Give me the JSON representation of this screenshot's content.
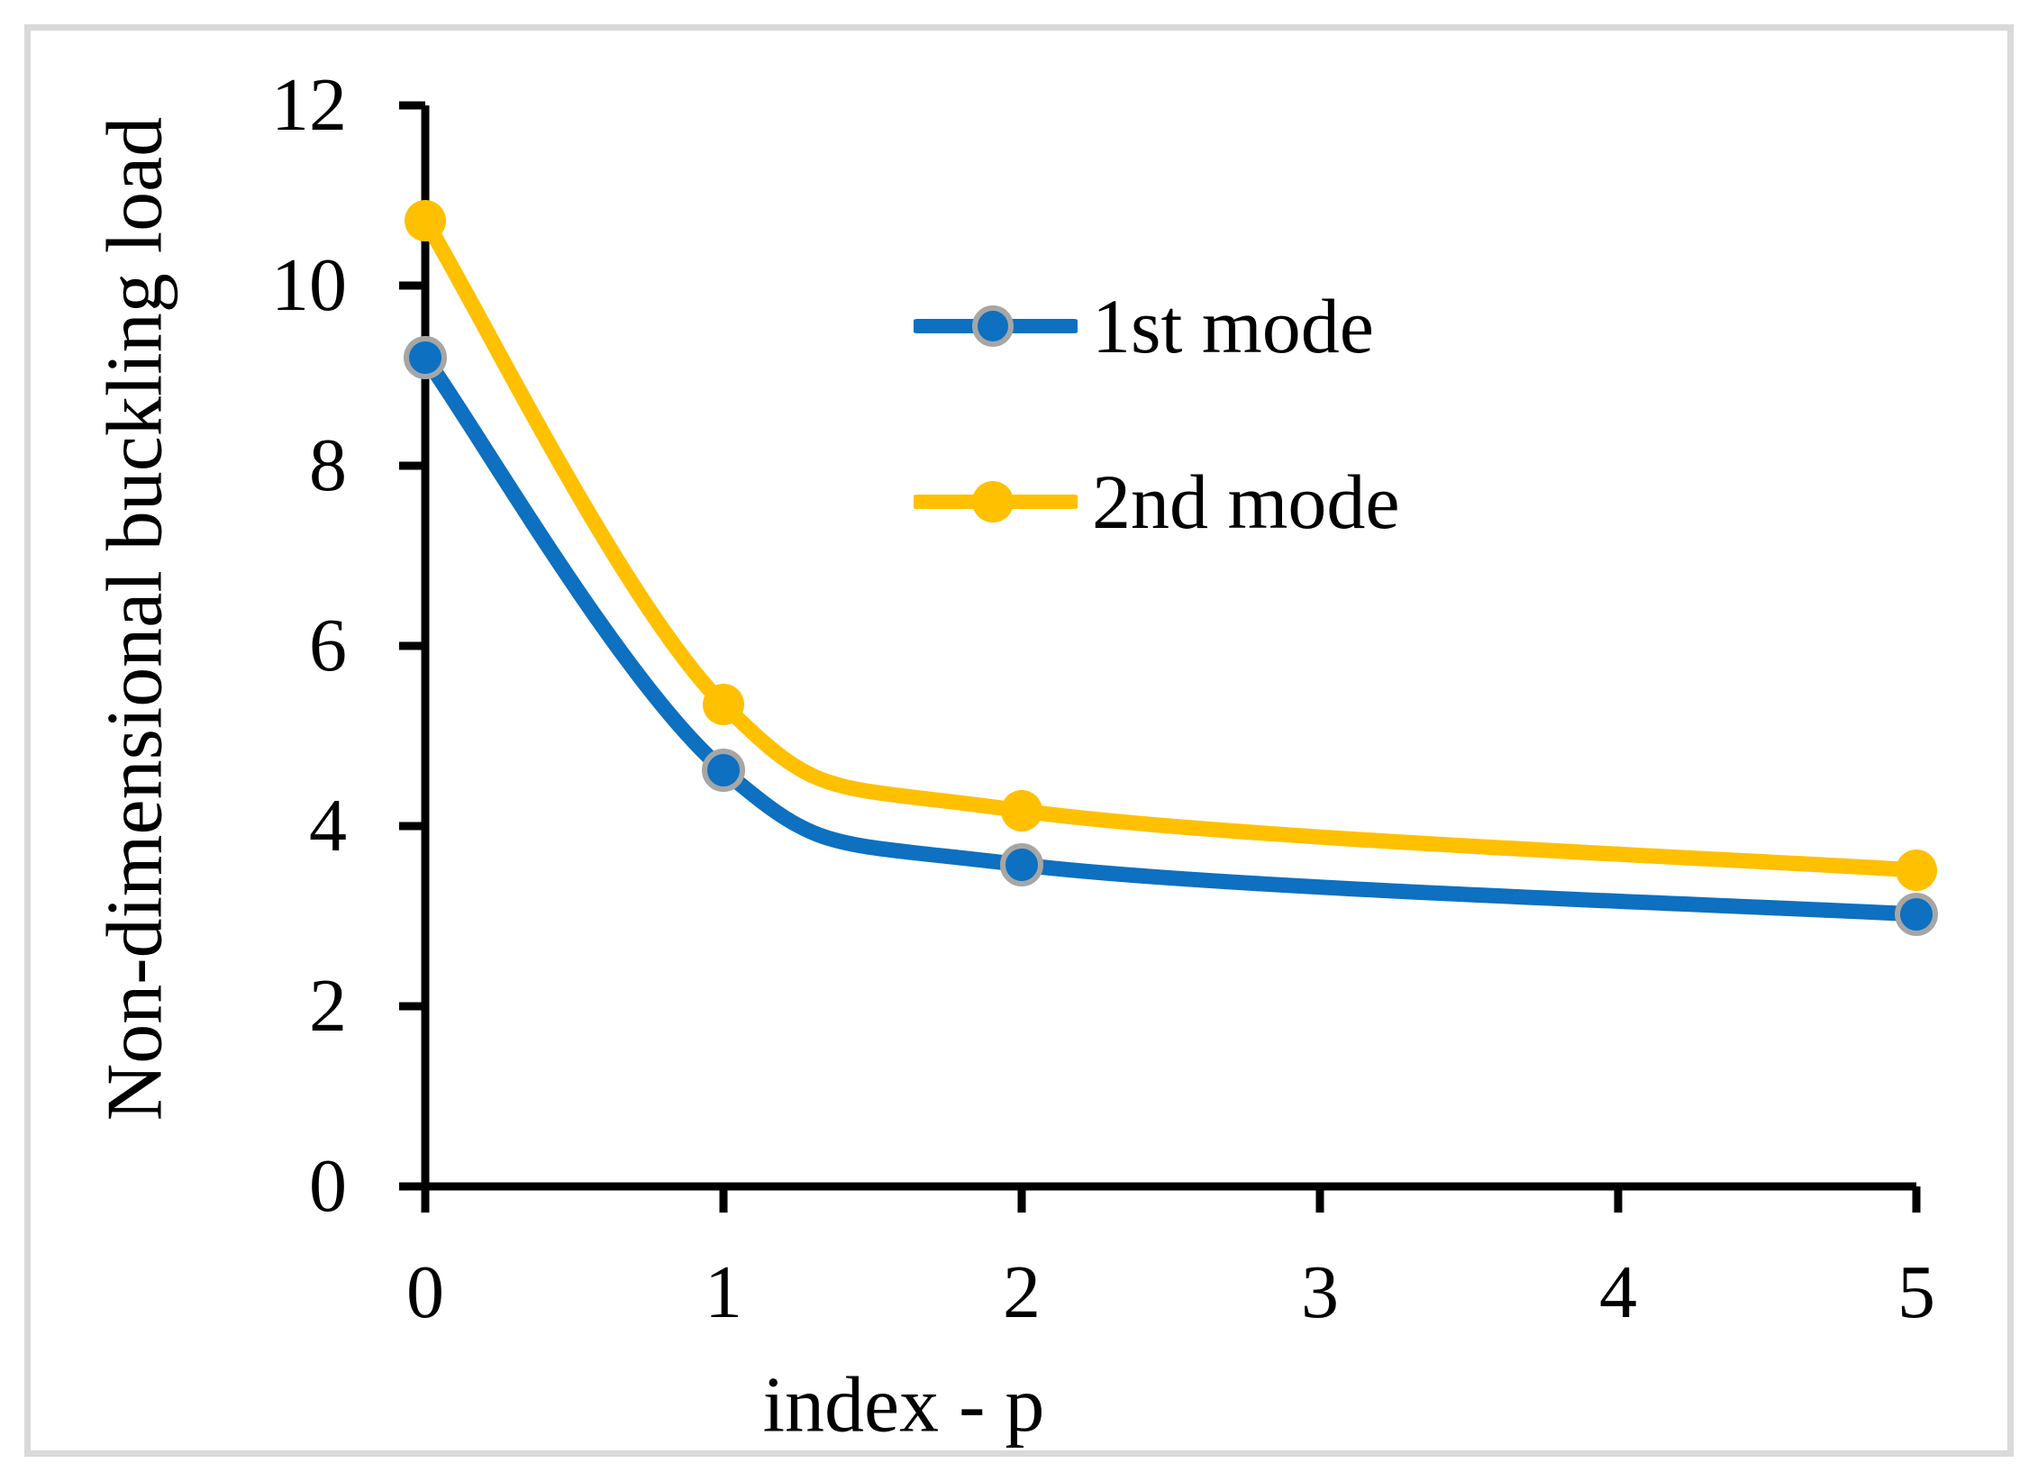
{
  "figure": {
    "background_color": "#ffffff",
    "frame_color": "#d9d9d9"
  },
  "chart_data": {
    "type": "line",
    "title": "",
    "xlabel": "index - p",
    "ylabel": "Non-dimensional buckling load",
    "x": [
      0,
      1,
      2,
      5
    ],
    "series": [
      {
        "name": "1st mode",
        "color": "#0d70c0",
        "marker": "circle",
        "marker_ring_color": "#a6a6a6",
        "values": [
          9.2,
          4.62,
          3.57,
          3.02
        ]
      },
      {
        "name": "2nd mode",
        "color": "#ffc000",
        "marker": "circle",
        "marker_ring_color": null,
        "values": [
          10.72,
          5.35,
          4.17,
          3.51
        ]
      }
    ],
    "x_ticks": [
      0,
      1,
      2,
      3,
      4,
      5
    ],
    "y_ticks": [
      0,
      2,
      4,
      6,
      8,
      10,
      12
    ],
    "xlim": [
      0,
      5
    ],
    "ylim": [
      0,
      12
    ],
    "grid": false,
    "smooth": true,
    "legend_position": "inside-top-center",
    "axis_color": "#000000"
  }
}
